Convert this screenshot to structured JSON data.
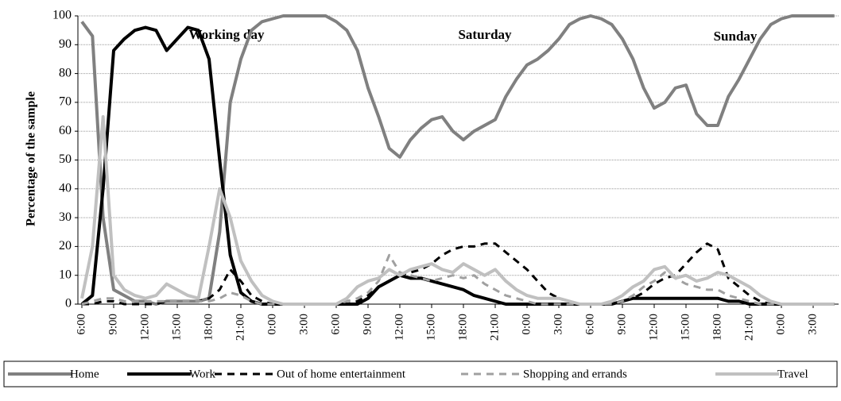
{
  "chart_data": {
    "type": "line",
    "y_label": "Percentage of the sample",
    "annotations": [
      "Working day",
      "Saturday",
      "Sunday"
    ],
    "categories": [
      "6:00",
      null,
      null,
      "9:00",
      null,
      null,
      "12:00",
      null,
      null,
      "15:00",
      null,
      null,
      "18:00",
      null,
      null,
      "21:00",
      null,
      null,
      "0:00",
      null,
      null,
      "3:00",
      null,
      null,
      "6:00",
      null,
      null,
      "9:00",
      null,
      null,
      "12:00",
      null,
      null,
      "15:00",
      null,
      null,
      "18:00",
      null,
      null,
      "21:00",
      null,
      null,
      "0:00",
      null,
      null,
      "3:00",
      null,
      null,
      "6:00",
      null,
      null,
      "9:00",
      null,
      null,
      "12:00",
      null,
      null,
      "15:00",
      null,
      null,
      "18:00",
      null,
      null,
      "21:00",
      null,
      null,
      "0:00",
      null,
      null,
      "3:00",
      null,
      null
    ],
    "ylim": [
      0,
      100
    ],
    "yticks": [
      0,
      10,
      20,
      30,
      40,
      50,
      60,
      70,
      80,
      90,
      100
    ],
    "grid": true,
    "legend": "bottom",
    "series": [
      {
        "name": "Home",
        "color": "#808080",
        "dash": "solid",
        "values": [
          98,
          93,
          30,
          5,
          3,
          1,
          1,
          0,
          1,
          1,
          1,
          1,
          2,
          25,
          70,
          85,
          95,
          98,
          99,
          100,
          100,
          100,
          100,
          100,
          98,
          95,
          88,
          75,
          65,
          54,
          51,
          57,
          61,
          64,
          65,
          60,
          57,
          60,
          62,
          64,
          72,
          78,
          83,
          85,
          88,
          92,
          97,
          99,
          100,
          99,
          97,
          92,
          85,
          75,
          68,
          70,
          75,
          76,
          66,
          62,
          62,
          72,
          78,
          85,
          92,
          97,
          99,
          100,
          100,
          100,
          100,
          100
        ]
      },
      {
        "name": "Work",
        "color": "#000000",
        "dash": "solid",
        "values": [
          0,
          3,
          40,
          88,
          92,
          95,
          96,
          95,
          88,
          92,
          96,
          95,
          85,
          50,
          17,
          4,
          1,
          0,
          0,
          0,
          0,
          0,
          0,
          0,
          0,
          0,
          0,
          2,
          6,
          8,
          10,
          9,
          9,
          8,
          7,
          6,
          5,
          3,
          2,
          1,
          0,
          0,
          0,
          0,
          0,
          0,
          0,
          0,
          0,
          0,
          0,
          1,
          2,
          2,
          2,
          2,
          2,
          2,
          2,
          2,
          2,
          1,
          1,
          0,
          0,
          0,
          0,
          0,
          0,
          0,
          0,
          0
        ]
      },
      {
        "name": "Out of home entertainment",
        "color": "#000000",
        "dash": "dashed",
        "values": [
          0,
          0,
          1,
          1,
          0,
          0,
          0,
          0,
          1,
          1,
          1,
          1,
          2,
          5,
          12,
          8,
          3,
          1,
          0,
          0,
          0,
          0,
          0,
          0,
          0,
          0,
          1,
          3,
          6,
          8,
          10,
          11,
          12,
          14,
          17,
          19,
          20,
          20,
          21,
          21,
          18,
          15,
          12,
          8,
          4,
          2,
          1,
          0,
          0,
          0,
          0,
          1,
          2,
          4,
          7,
          9,
          10,
          14,
          18,
          21,
          19,
          9,
          6,
          3,
          1,
          0,
          0,
          0,
          0,
          0,
          0,
          0
        ]
      },
      {
        "name": "Shopping and errands",
        "color": "#a0a0a0",
        "dash": "dashed",
        "values": [
          0,
          1,
          2,
          2,
          1,
          1,
          1,
          1,
          1,
          1,
          1,
          1,
          1,
          2,
          4,
          3,
          1,
          0,
          0,
          0,
          0,
          0,
          0,
          0,
          0,
          1,
          2,
          4,
          8,
          17,
          11,
          10,
          9,
          8,
          9,
          10,
          9,
          10,
          7,
          5,
          3,
          2,
          1,
          0,
          0,
          0,
          0,
          0,
          0,
          0,
          0,
          1,
          3,
          6,
          8,
          11,
          9,
          7,
          6,
          5,
          5,
          3,
          2,
          1,
          0,
          0,
          0,
          0,
          0,
          0,
          0,
          0
        ]
      },
      {
        "name": "Travel",
        "color": "#c0c0c0",
        "dash": "solid",
        "values": [
          2,
          20,
          65,
          10,
          5,
          3,
          2,
          3,
          7,
          5,
          3,
          2,
          20,
          40,
          30,
          15,
          8,
          3,
          1,
          0,
          0,
          0,
          0,
          0,
          0,
          2,
          6,
          8,
          9,
          12,
          10,
          12,
          13,
          14,
          12,
          11,
          14,
          12,
          10,
          12,
          8,
          5,
          3,
          2,
          2,
          2,
          1,
          0,
          0,
          0,
          1,
          3,
          6,
          8,
          12,
          13,
          9,
          10,
          8,
          9,
          11,
          10,
          8,
          6,
          3,
          1,
          0,
          0,
          0,
          0,
          0,
          0
        ]
      }
    ]
  }
}
